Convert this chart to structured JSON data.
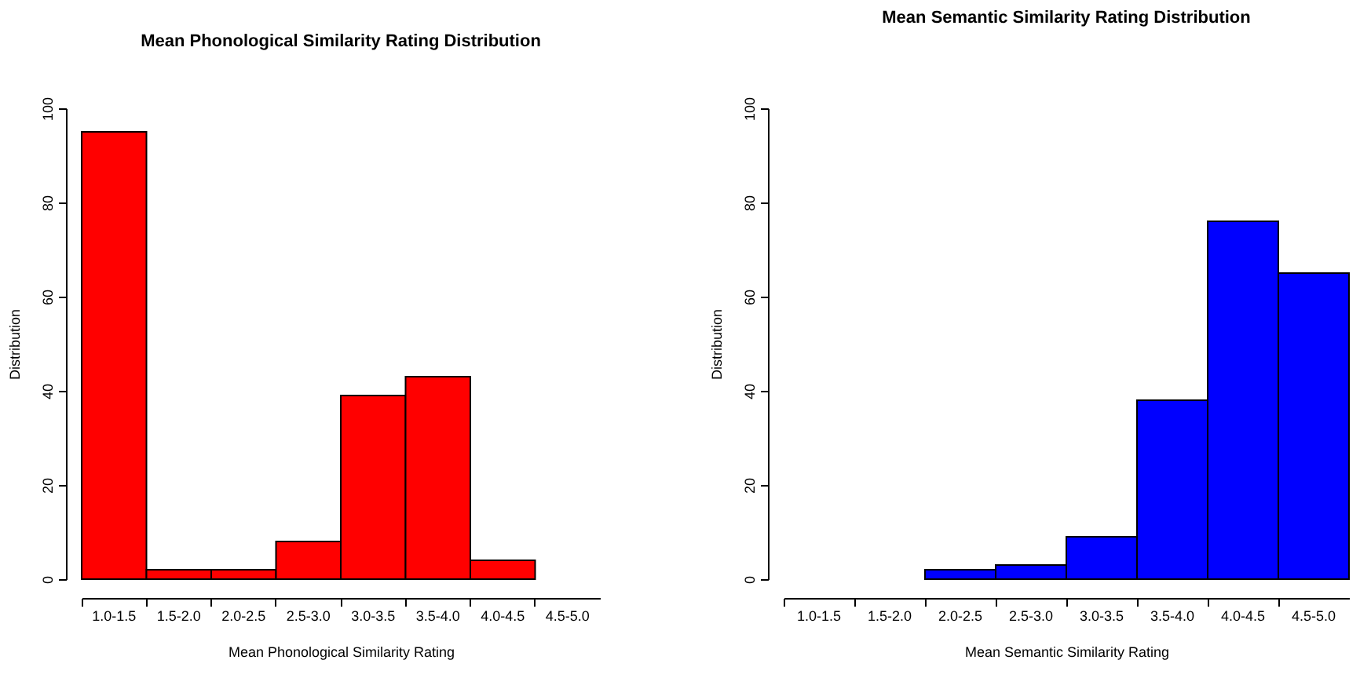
{
  "chart_data": [
    {
      "type": "bar",
      "title": "Mean Phonological Similarity Rating Distribution",
      "xlabel": "Mean Phonological Similarity Rating",
      "ylabel": "Distribution",
      "categories": [
        "1.0-1.5",
        "1.5-2.0",
        "2.0-2.5",
        "2.5-3.0",
        "3.0-3.5",
        "3.5-4.0",
        "4.0-4.5",
        "4.5-5.0"
      ],
      "values": [
        95,
        2,
        2,
        8,
        39,
        43,
        4,
        null
      ],
      "color": "#ff0000",
      "ylim": [
        0,
        100
      ],
      "yticks": [
        0,
        20,
        40,
        60,
        80,
        100
      ]
    },
    {
      "type": "bar",
      "title": "Mean Semantic Similarity Rating Distribution",
      "xlabel": "Mean Semantic Similarity Rating",
      "ylabel": "Distribution",
      "categories": [
        "1.0-1.5",
        "1.5-2.0",
        "2.0-2.5",
        "2.5-3.0",
        "3.0-3.5",
        "3.5-4.0",
        "4.0-4.5",
        "4.5-5.0"
      ],
      "values": [
        null,
        null,
        2,
        3,
        9,
        38,
        76,
        65
      ],
      "color": "#0000ff",
      "ylim": [
        0,
        100
      ],
      "yticks": [
        0,
        20,
        40,
        60,
        80,
        100
      ]
    }
  ]
}
